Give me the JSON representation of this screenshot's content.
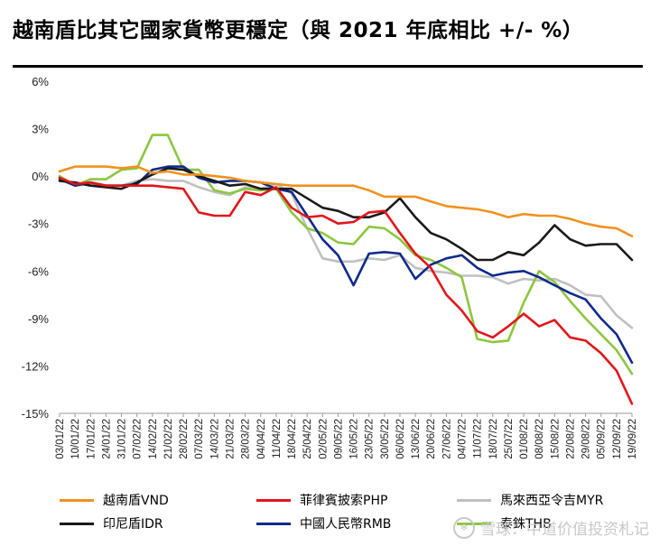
{
  "title": "越南盾比其它國家貨幣更穩定（與 2021 年底相比 +/- %）",
  "watermark": "雪球：中道价值投资札记",
  "chart_data": {
    "type": "line",
    "title": "越南盾比其它國家貨幣更穩定（與 2021 年底相比 +/- %）",
    "xlabel": "",
    "ylabel": "",
    "ylim": [
      -15,
      6
    ],
    "yticks": [
      6,
      3,
      0,
      -3,
      -6,
      -9,
      -12,
      -15
    ],
    "ytick_labels": [
      "6%",
      "3%",
      "0%",
      "-3%",
      "-6%",
      "-9%",
      "-12%",
      "-15%"
    ],
    "categories": [
      "03/01/22",
      "10/01/22",
      "17/01/22",
      "24/01/22",
      "31/01/22",
      "07/02/22",
      "14/02/22",
      "21/02/22",
      "28/02/22",
      "07/03/22",
      "14/03/22",
      "21/03/22",
      "28/03/22",
      "04/04/22",
      "11/04/22",
      "18/04/22",
      "25/04/22",
      "02/05/22",
      "09/05/22",
      "16/05/22",
      "23/05/22",
      "30/05/22",
      "06/06/22",
      "13/06/22",
      "20/06/22",
      "27/06/22",
      "04/07/22",
      "11/07/22",
      "18/07/22",
      "25/07/22",
      "01/08/22",
      "08/08/22",
      "15/08/22",
      "22/08/22",
      "29/08/22",
      "05/09/22",
      "12/09/22",
      "19/09/22"
    ],
    "grid": false,
    "legend_position": "bottom",
    "series": [
      {
        "name": "越南盾VND",
        "color": "#f0921e",
        "values": [
          0.3,
          0.6,
          0.6,
          0.6,
          0.5,
          0.6,
          0.2,
          0.3,
          0.1,
          0.1,
          0.0,
          -0.1,
          -0.3,
          -0.4,
          -0.5,
          -0.6,
          -0.6,
          -0.6,
          -0.6,
          -0.6,
          -0.9,
          -1.3,
          -1.3,
          -1.3,
          -1.6,
          -1.9,
          -2.0,
          -2.1,
          -2.3,
          -2.6,
          -2.4,
          -2.5,
          -2.5,
          -2.7,
          -3.0,
          -3.2,
          -3.3,
          -3.8
        ]
      },
      {
        "name": "菲律賓披索PHP",
        "color": "#e3151b",
        "values": [
          -0.1,
          -0.5,
          -0.4,
          -0.6,
          -0.6,
          -0.6,
          -0.6,
          -0.7,
          -0.8,
          -2.3,
          -2.5,
          -2.5,
          -1.0,
          -1.2,
          -0.7,
          -2.0,
          -2.6,
          -2.5,
          -3.0,
          -2.9,
          -2.3,
          -2.2,
          -3.6,
          -4.9,
          -5.8,
          -7.5,
          -8.5,
          -9.8,
          -10.2,
          -9.5,
          -8.7,
          -9.5,
          -9.1,
          -10.2,
          -10.4,
          -11.2,
          -12.3,
          -14.4
        ]
      },
      {
        "name": "馬來西亞令吉MYR",
        "color": "#c0c0c0",
        "values": [
          -0.1,
          -0.6,
          -0.5,
          -0.6,
          -0.6,
          -0.3,
          -0.2,
          -0.3,
          -0.3,
          -0.7,
          -1.0,
          -1.2,
          -0.7,
          -0.8,
          -0.5,
          -1.1,
          -3.3,
          -5.2,
          -5.4,
          -5.4,
          -5.2,
          -5.3,
          -5.0,
          -5.8,
          -6.0,
          -6.1,
          -6.3,
          -6.3,
          -6.4,
          -6.8,
          -6.5,
          -6.6,
          -6.5,
          -6.9,
          -7.5,
          -7.6,
          -8.8,
          -9.6
        ]
      },
      {
        "name": "印尼盾IDR",
        "color": "#1a1a1a",
        "values": [
          -0.3,
          -0.4,
          -0.6,
          -0.7,
          -0.8,
          -0.4,
          0.1,
          0.5,
          0.4,
          0.0,
          -0.3,
          -0.6,
          -0.5,
          -0.8,
          -0.8,
          -0.8,
          -1.4,
          -2.0,
          -2.2,
          -2.6,
          -2.6,
          -2.3,
          -1.4,
          -2.6,
          -3.6,
          -4.0,
          -4.6,
          -5.3,
          -5.3,
          -4.8,
          -5.0,
          -4.2,
          -3.1,
          -4.0,
          -4.4,
          -4.3,
          -4.3,
          -5.3
        ]
      },
      {
        "name": "中國人民幣RMB",
        "color": "#0f2a8a",
        "values": [
          -0.2,
          -0.6,
          -0.4,
          -0.6,
          -0.6,
          -0.5,
          0.4,
          0.6,
          0.6,
          -0.1,
          -0.4,
          -0.3,
          -0.3,
          -0.4,
          -0.8,
          -1.0,
          -2.5,
          -4.0,
          -5.0,
          -6.9,
          -4.9,
          -4.8,
          -4.9,
          -6.5,
          -5.6,
          -5.2,
          -5.0,
          -5.8,
          -6.3,
          -6.1,
          -6.0,
          -6.4,
          -6.9,
          -7.4,
          -7.8,
          -9.0,
          -10.0,
          -11.8
        ]
      },
      {
        "name": "泰銖THB",
        "color": "#8cc63f",
        "values": [
          0.0,
          -0.6,
          -0.2,
          -0.2,
          0.4,
          0.5,
          2.6,
          2.6,
          0.4,
          0.4,
          -0.9,
          -1.1,
          -0.8,
          -0.9,
          -0.8,
          -2.3,
          -3.3,
          -3.6,
          -4.2,
          -4.3,
          -3.2,
          -3.3,
          -4.0,
          -5.0,
          -5.3,
          -5.8,
          -6.4,
          -10.3,
          -10.5,
          -10.4,
          -8.0,
          -6.0,
          -6.7,
          -7.9,
          -9.0,
          -10.0,
          -11.0,
          -12.5
        ]
      }
    ]
  },
  "legend": [
    {
      "label": "越南盾VND",
      "color": "#f0921e"
    },
    {
      "label": "菲律賓披索PHP",
      "color": "#e3151b"
    },
    {
      "label": "馬來西亞令吉MYR",
      "color": "#c0c0c0"
    },
    {
      "label": "印尼盾IDR",
      "color": "#1a1a1a"
    },
    {
      "label": "中國人民幣RMB",
      "color": "#0f2a8a"
    },
    {
      "label": "泰銖THB",
      "color": "#8cc63f"
    }
  ]
}
